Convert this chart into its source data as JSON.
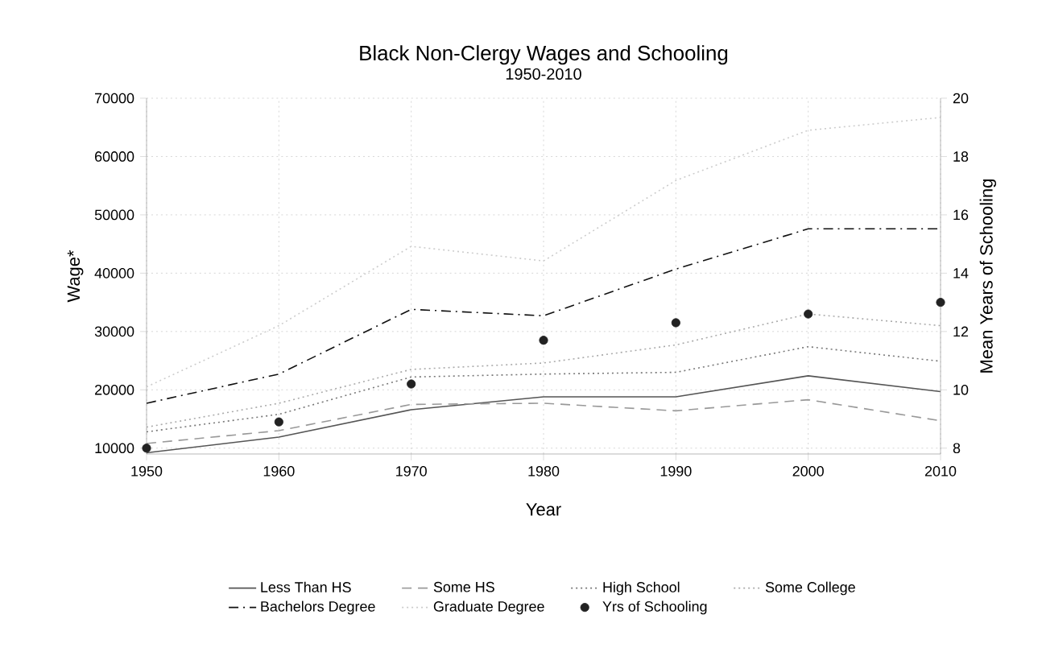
{
  "chart_data": {
    "type": "line",
    "title": "Black Non-Clergy Wages and Schooling",
    "subtitle": "1950-2010",
    "xlabel": "Year",
    "ylabel": "Wage*",
    "y2label": "Mean Years of Schooling",
    "x": [
      1950,
      1960,
      1970,
      1980,
      1990,
      2000,
      2010
    ],
    "xlim": [
      1950,
      2010
    ],
    "xticks": [
      1950,
      1960,
      1970,
      1980,
      1990,
      2000,
      2010
    ],
    "ylim": [
      9000,
      70000
    ],
    "yticks": [
      10000,
      20000,
      30000,
      40000,
      50000,
      60000,
      70000
    ],
    "y2lim": [
      7.8,
      20
    ],
    "y2ticks": [
      8,
      10,
      12,
      14,
      16,
      18,
      20
    ],
    "grid": true,
    "legend": "bottom",
    "series": [
      {
        "name": "Less Than HS",
        "color": "#555555",
        "line_style": "solid",
        "marker": "none",
        "values": [
          9200,
          11900,
          16600,
          18800,
          18800,
          22400,
          19700
        ]
      },
      {
        "name": "Some HS",
        "color": "#999999",
        "line_style": "dashed",
        "marker": "none",
        "values": [
          10800,
          13000,
          17500,
          17700,
          16400,
          18300,
          14700
        ]
      },
      {
        "name": "High School",
        "color": "#777777",
        "line_style": "dotted",
        "marker": "none",
        "values": [
          12800,
          15800,
          22200,
          22700,
          23000,
          27400,
          24900
        ]
      },
      {
        "name": "Some College",
        "color": "#aaaaaa",
        "line_style": "dotted",
        "marker": "none",
        "values": [
          13600,
          17700,
          23500,
          24600,
          27700,
          33000,
          31000
        ]
      },
      {
        "name": "Bachelors Degree",
        "color": "#111111",
        "line_style": "dashdot",
        "marker": "none",
        "values": [
          17700,
          22700,
          33800,
          32700,
          40700,
          47600,
          47600
        ]
      },
      {
        "name": "Graduate Degree",
        "color": "#cccccc",
        "line_style": "dotted",
        "marker": "none",
        "values": [
          20500,
          31000,
          44600,
          42100,
          55900,
          64500,
          66700
        ]
      },
      {
        "name": "Yrs of Schooling",
        "type": "scatter",
        "axis": "y2",
        "color": "#222222",
        "values": [
          8.0,
          8.9,
          10.2,
          11.7,
          12.3,
          12.6,
          13.0
        ]
      }
    ]
  }
}
